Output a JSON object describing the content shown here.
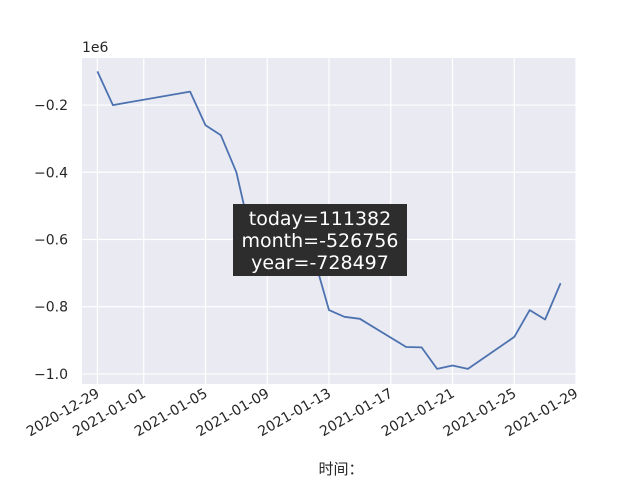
{
  "chart_data": {
    "type": "line",
    "title": "",
    "xlabel": "时间：",
    "ylabel": "",
    "y_offset_label": "1e6",
    "y_scale_multiplier": 1000000,
    "ylim": [
      -1.03,
      -0.06
    ],
    "xlim": [
      "2020-12-28",
      "2021-01-29"
    ],
    "grid": true,
    "x_ticks": [
      "2020-12-29",
      "2021-01-01",
      "2021-01-05",
      "2021-01-09",
      "2021-01-13",
      "2021-01-17",
      "2021-01-21",
      "2021-01-25",
      "2021-01-29"
    ],
    "y_ticks": [
      -1.0,
      -0.8,
      -0.6,
      -0.4,
      -0.2
    ],
    "y_tick_labels": [
      "−1.0",
      "−0.8",
      "−0.6",
      "−0.4",
      "−0.2"
    ],
    "series": [
      {
        "color": "#4c72b0",
        "points": [
          {
            "x": "2020-12-29",
            "y": -0.1
          },
          {
            "x": "2020-12-30",
            "y": -0.2
          },
          {
            "x": "2021-01-04",
            "y": -0.16
          },
          {
            "x": "2021-01-05",
            "y": -0.26
          },
          {
            "x": "2021-01-06",
            "y": -0.29
          },
          {
            "x": "2021-01-07",
            "y": -0.4
          },
          {
            "x": "2021-01-08",
            "y": -0.6
          },
          {
            "x": "2021-01-11",
            "y": -0.62
          },
          {
            "x": "2021-01-12",
            "y": -0.65
          },
          {
            "x": "2021-01-13",
            "y": -0.81
          },
          {
            "x": "2021-01-14",
            "y": -0.83
          },
          {
            "x": "2021-01-15",
            "y": -0.836
          },
          {
            "x": "2021-01-18",
            "y": -0.92
          },
          {
            "x": "2021-01-19",
            "y": -0.921
          },
          {
            "x": "2021-01-20",
            "y": -0.985
          },
          {
            "x": "2021-01-21",
            "y": -0.975
          },
          {
            "x": "2021-01-22",
            "y": -0.985
          },
          {
            "x": "2021-01-25",
            "y": -0.89
          },
          {
            "x": "2021-01-26",
            "y": -0.81
          },
          {
            "x": "2021-01-27",
            "y": -0.838
          },
          {
            "x": "2021-01-28",
            "y": -0.73
          }
        ]
      }
    ],
    "annotation": {
      "lines": [
        "today=111382",
        "month=-526756",
        "year=-728497"
      ],
      "box_color": "#2d2d2d",
      "text_color": "#ffffff"
    },
    "colors": {
      "plot_background": "#eaeaf2",
      "grid": "#ffffff",
      "line": "#4c72b0"
    }
  }
}
